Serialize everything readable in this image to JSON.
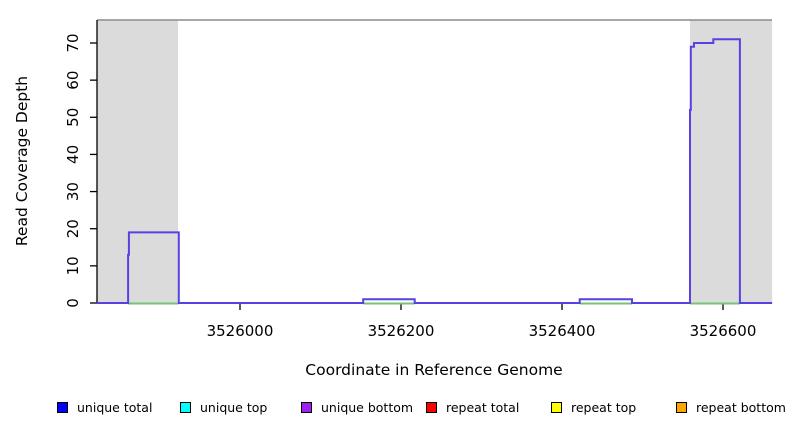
{
  "chart_data": {
    "type": "line",
    "subtype": "step-coverage",
    "title": "",
    "xlabel": "Coordinate in Reference Genome",
    "ylabel": "Read Coverage Depth",
    "xlim": [
      3525822,
      3526661
    ],
    "ylim": [
      0,
      76
    ],
    "x_ticks": [
      3526000,
      3526200,
      3526400,
      3526600
    ],
    "y_ticks": [
      0,
      10,
      20,
      30,
      40,
      50,
      60,
      70
    ],
    "grid": false,
    "legend_position": "bottom",
    "highlight_bands": [
      [
        3525822,
        3525923
      ],
      [
        3526559,
        3526661
      ]
    ],
    "coverage_steps": [
      [
        3525822,
        3525861,
        0
      ],
      [
        3525861,
        3525862,
        13
      ],
      [
        3525862,
        3525924,
        19
      ],
      [
        3525924,
        3526153,
        0
      ],
      [
        3526153,
        3526217,
        1
      ],
      [
        3526217,
        3526422,
        0
      ],
      [
        3526422,
        3526487,
        1
      ],
      [
        3526487,
        3526559,
        0
      ],
      [
        3526559,
        3526560,
        52
      ],
      [
        3526560,
        3526564,
        69
      ],
      [
        3526564,
        3526588,
        70
      ],
      [
        3526588,
        3526621,
        71
      ],
      [
        3526621,
        3526661,
        0
      ]
    ],
    "zero_baseline_segments": [
      [
        3525861,
        3525924
      ],
      [
        3526153,
        3526217
      ],
      [
        3526422,
        3526487
      ],
      [
        3526559,
        3526621
      ]
    ],
    "colors": {
      "coverage_line": "#5940E3",
      "zero_baseline": "#74C474",
      "band_fill": "#DBDBDB",
      "top_border": "#8C8C8C",
      "axis": "#000000"
    }
  },
  "legend": {
    "items": [
      {
        "label": "unique total",
        "color": "#0000FF"
      },
      {
        "label": "unique top",
        "color": "#00FFFF"
      },
      {
        "label": "unique bottom",
        "color": "#A020F0"
      },
      {
        "label": "repeat total",
        "color": "#FF0000"
      },
      {
        "label": "repeat top",
        "color": "#FFFF00"
      },
      {
        "label": "repeat bottom",
        "color": "#FFA500"
      }
    ]
  }
}
